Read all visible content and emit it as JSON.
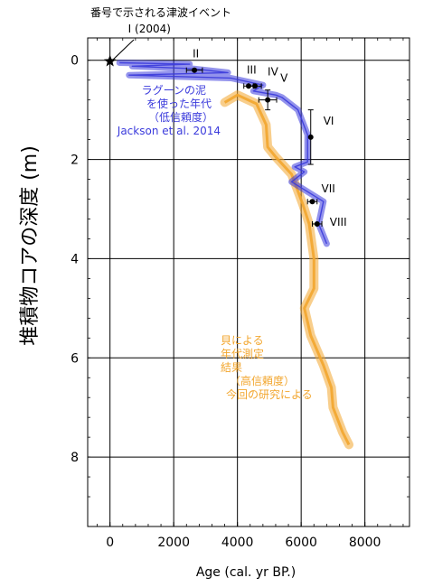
{
  "chart_data": {
    "type": "line",
    "title": "",
    "xlabel": "Age (cal. yr BP.)",
    "ylabel": "堆積物コアの深度 (m)",
    "xlim": [
      -700,
      9400
    ],
    "ylim": [
      9.4,
      -0.45
    ],
    "x_ticks": [
      0,
      2000,
      4000,
      6000,
      8000
    ],
    "x_tick_labels": [
      "0",
      "2000",
      "4000",
      "6000",
      "8000"
    ],
    "y_ticks": [
      0,
      2,
      4,
      6,
      8
    ],
    "y_tick_labels": [
      "0",
      "2",
      "4",
      "6",
      "8"
    ],
    "grid": true,
    "grid_color": "#000000",
    "tsunami_header": "番号で示される津波イベント",
    "series": [
      {
        "name": "ラグーンの泥を使った年代（低信頼度）Jackson et al. 2014",
        "color": "#3b3bdc",
        "band": true,
        "points": [
          {
            "x": 300,
            "y": 0.05
          },
          {
            "x": 2500,
            "y": 0.08
          },
          {
            "x": 700,
            "y": 0.12
          },
          {
            "x": 2600,
            "y": 0.17
          },
          {
            "x": 3700,
            "y": 0.25
          },
          {
            "x": 600,
            "y": 0.3
          },
          {
            "x": 3800,
            "y": 0.36
          },
          {
            "x": 4800,
            "y": 0.5
          },
          {
            "x": 4500,
            "y": 0.62
          },
          {
            "x": 5200,
            "y": 0.7
          },
          {
            "x": 5400,
            "y": 0.75
          },
          {
            "x": 5900,
            "y": 1.0
          },
          {
            "x": 6200,
            "y": 1.5
          },
          {
            "x": 6200,
            "y": 2.05
          },
          {
            "x": 5800,
            "y": 2.15
          },
          {
            "x": 6100,
            "y": 2.25
          },
          {
            "x": 5700,
            "y": 2.45
          },
          {
            "x": 6700,
            "y": 2.85
          },
          {
            "x": 6550,
            "y": 3.3
          },
          {
            "x": 6800,
            "y": 3.7
          }
        ]
      },
      {
        "name": "貝による年代測定結果（高信頼度）今回の研究による",
        "color": "#f2a62e",
        "band": true,
        "points": [
          {
            "x": 3600,
            "y": 0.85
          },
          {
            "x": 4000,
            "y": 0.7
          },
          {
            "x": 4600,
            "y": 0.88
          },
          {
            "x": 4900,
            "y": 1.3
          },
          {
            "x": 4950,
            "y": 1.75
          },
          {
            "x": 5200,
            "y": 1.95
          },
          {
            "x": 5700,
            "y": 2.3
          },
          {
            "x": 6050,
            "y": 2.9
          },
          {
            "x": 6250,
            "y": 3.3
          },
          {
            "x": 6400,
            "y": 4.0
          },
          {
            "x": 6400,
            "y": 4.6
          },
          {
            "x": 6100,
            "y": 5.0
          },
          {
            "x": 6300,
            "y": 5.55
          },
          {
            "x": 6700,
            "y": 6.15
          },
          {
            "x": 6950,
            "y": 6.6
          },
          {
            "x": 7000,
            "y": 7.0
          },
          {
            "x": 7300,
            "y": 7.5
          },
          {
            "x": 7500,
            "y": 7.75
          }
        ]
      }
    ],
    "events": [
      {
        "label": "I (2004)",
        "x": 0,
        "y": 0.02,
        "xerr": 0,
        "yerr": 0,
        "marker": "star"
      },
      {
        "label": "II",
        "x": 2650,
        "y": 0.2,
        "xerr": 250,
        "yerr": 0
      },
      {
        "label": "III",
        "x": 4350,
        "y": 0.52,
        "xerr": 150,
        "yerr": 0
      },
      {
        "label": "IV",
        "x": 4550,
        "y": 0.52,
        "xerr": 200,
        "yerr": 0
      },
      {
        "label": "V",
        "x": 4950,
        "y": 0.8,
        "xerr": 280,
        "yerr": 0.2
      },
      {
        "label": "VI",
        "x": 6300,
        "y": 1.55,
        "xerr": 0,
        "yerr": 0.55
      },
      {
        "label": "VII",
        "x": 6350,
        "y": 2.85,
        "xerr": 150,
        "yerr": 0
      },
      {
        "label": "VIII",
        "x": 6500,
        "y": 3.3,
        "xerr": 150,
        "yerr": 0
      }
    ],
    "annotations": [
      {
        "lines": [
          "ラグーンの泥",
          "を使った年代",
          "（低信頼度）",
          "Jackson et al. 2014"
        ],
        "color": "#3b3bdc"
      },
      {
        "lines": [
          "貝による",
          "年代測定",
          "結果",
          "（高信頼度）",
          "今回の研究による"
        ],
        "color": "#f2a62e"
      }
    ]
  }
}
